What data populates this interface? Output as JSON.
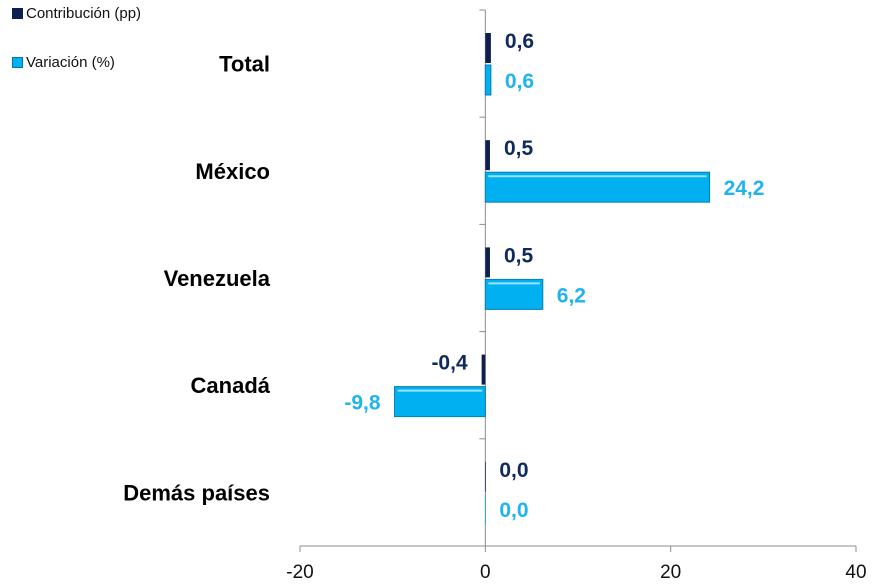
{
  "chart_data": {
    "type": "bar",
    "orientation": "horizontal",
    "categories": [
      "Total",
      "México",
      "Venezuela",
      "Canadá",
      "Demás países"
    ],
    "series": [
      {
        "name": "Contribución (pp)",
        "values": [
          0.6,
          0.5,
          0.5,
          -0.4,
          0.0
        ],
        "labels": [
          "0,6",
          "0,5",
          "0,5",
          "-0,4",
          "0,0"
        ],
        "color": "#0d1f4f",
        "label_color": "#0f2a5c"
      },
      {
        "name": "Variación (%)",
        "values": [
          0.6,
          24.2,
          6.2,
          -9.8,
          0.0
        ],
        "labels": [
          "0,6",
          "24,2",
          "6,2",
          "-9,8",
          "0,0"
        ],
        "color": "#00b0f0",
        "label_color": "#1fb4ee"
      }
    ],
    "xlim": [
      -20,
      40
    ],
    "xticks": [
      -20,
      0,
      20,
      40
    ],
    "xtick_labels": [
      "-20",
      "0",
      "20",
      "40"
    ],
    "grid": false,
    "legend_position": "top-left"
  }
}
